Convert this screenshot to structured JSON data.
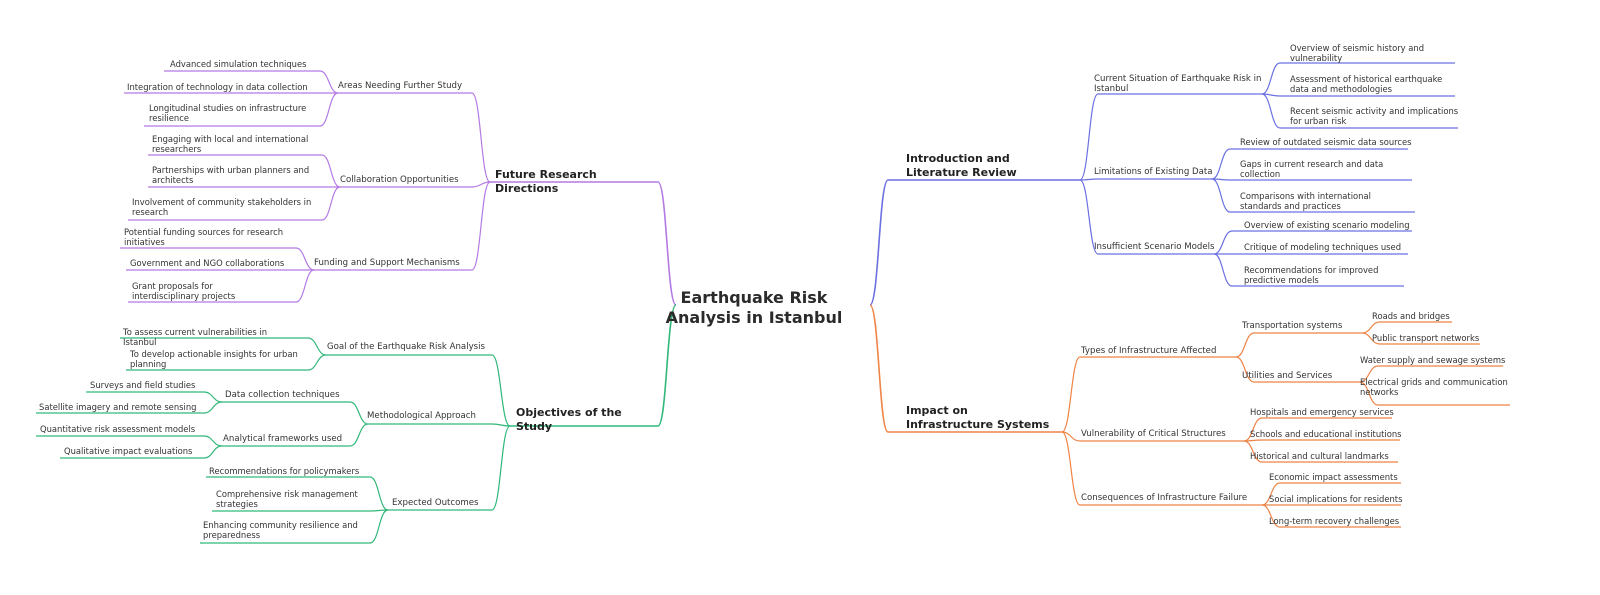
{
  "root": {
    "text": "Earthquake Risk Analysis in Istanbul"
  },
  "colors": {
    "intro": "#6b70e0",
    "impact": "#ee8446",
    "future": "#b47ae4",
    "objectives": "#31b77a"
  },
  "branches": [
    {
      "text": "Introduction and Literature Review",
      "color": "#6b70e0",
      "children": [
        {
          "text": "Current Situation of Earthquake Risk in Istanbul",
          "children": [
            {
              "text": "Overview of seismic history and vulnerability"
            },
            {
              "text": "Assessment of historical earthquake data and methodologies"
            },
            {
              "text": "Recent seismic activity and implications for urban risk"
            }
          ]
        },
        {
          "text": "Limitations of Existing Data",
          "children": [
            {
              "text": "Review of outdated seismic data sources"
            },
            {
              "text": "Gaps in current research and data collection"
            },
            {
              "text": "Comparisons with international standards and practices"
            }
          ]
        },
        {
          "text": "Insufficient Scenario Models",
          "children": [
            {
              "text": "Overview of existing scenario modeling"
            },
            {
              "text": "Critique of modeling techniques used"
            },
            {
              "text": "Recommendations for improved predictive models"
            }
          ]
        }
      ]
    },
    {
      "text": "Impact on Infrastructure Systems",
      "color": "#ee8446",
      "children": [
        {
          "text": "Types of Infrastructure Affected",
          "children": [
            {
              "text": "Transportation systems",
              "children": [
                {
                  "text": "Roads and bridges"
                },
                {
                  "text": "Public transport networks"
                }
              ]
            },
            {
              "text": "Utilities and Services",
              "children": [
                {
                  "text": "Water supply and sewage systems"
                },
                {
                  "text": "Electrical grids and communication networks"
                }
              ]
            }
          ]
        },
        {
          "text": "Vulnerability of Critical Structures",
          "children": [
            {
              "text": "Hospitals and emergency services"
            },
            {
              "text": "Schools and educational institutions"
            },
            {
              "text": "Historical and cultural landmarks"
            }
          ]
        },
        {
          "text": "Consequences of Infrastructure Failure",
          "children": [
            {
              "text": "Economic impact assessments"
            },
            {
              "text": "Social implications for residents"
            },
            {
              "text": "Long-term recovery challenges"
            }
          ]
        }
      ]
    },
    {
      "text": "Future Research Directions",
      "color": "#b47ae4",
      "children": [
        {
          "text": "Areas Needing Further Study",
          "children": [
            {
              "text": "Advanced simulation techniques"
            },
            {
              "text": "Integration of technology in data collection"
            },
            {
              "text": "Longitudinal studies on infrastructure resilience"
            }
          ]
        },
        {
          "text": "Collaboration Opportunities",
          "children": [
            {
              "text": "Engaging with local and international researchers"
            },
            {
              "text": "Partnerships with urban planners and architects"
            },
            {
              "text": "Involvement of community stakeholders in research"
            }
          ]
        },
        {
          "text": "Funding and Support Mechanisms",
          "children": [
            {
              "text": "Potential funding sources for research initiatives"
            },
            {
              "text": "Government and NGO collaborations"
            },
            {
              "text": "Grant proposals for interdisciplinary projects"
            }
          ]
        }
      ]
    },
    {
      "text": "Objectives of the Study",
      "color": "#31b77a",
      "children": [
        {
          "text": "Goal of the Earthquake Risk Analysis",
          "children": [
            {
              "text": "To assess current vulnerabilities in Istanbul"
            },
            {
              "text": "To develop actionable insights for urban planning"
            }
          ]
        },
        {
          "text": "Methodological Approach",
          "children": [
            {
              "text": "Data collection techniques",
              "children": [
                {
                  "text": "Surveys and field studies"
                },
                {
                  "text": "Satellite imagery and remote sensing"
                }
              ]
            },
            {
              "text": "Analytical frameworks used",
              "children": [
                {
                  "text": "Quantitative risk assessment models"
                },
                {
                  "text": "Qualitative impact evaluations"
                }
              ]
            }
          ]
        },
        {
          "text": "Expected Outcomes",
          "children": [
            {
              "text": "Recommendations for policymakers"
            },
            {
              "text": "Comprehensive risk management strategies"
            },
            {
              "text": "Enhancing community resilience and preparedness"
            }
          ]
        }
      ]
    }
  ]
}
